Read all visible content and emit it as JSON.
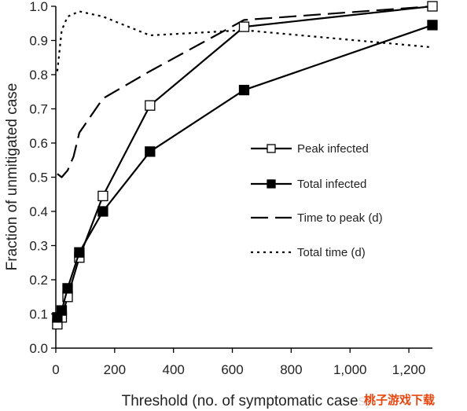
{
  "chart_data": {
    "type": "line",
    "title": "",
    "xlabel": "Threshold (no. of symptomatic cases)",
    "ylabel": "Fraction of unmitigated case",
    "xlim": [
      0,
      1280
    ],
    "ylim": [
      0,
      1.0
    ],
    "x_ticks": [
      0,
      200,
      400,
      600,
      800,
      1000,
      1200
    ],
    "x_tick_labels": [
      "0",
      "200",
      "400",
      "600",
      "800",
      "1,000",
      "1,200"
    ],
    "y_ticks": [
      0,
      0.1,
      0.2,
      0.3,
      0.4,
      0.5,
      0.6,
      0.7,
      0.8,
      0.9,
      1.0
    ],
    "y_tick_labels": [
      "0.0",
      "0.1",
      "0.2",
      "0.3",
      "0.4",
      "0.5",
      "0.6",
      "0.7",
      "0.8",
      "0.9",
      "1.0"
    ],
    "grid": false,
    "legend_position": "right-center",
    "series": [
      {
        "name": "Peak infected",
        "style": "solid-open-square",
        "color": "#000000",
        "x": [
          5,
          20,
          40,
          80,
          160,
          320,
          640,
          1280
        ],
        "y": [
          0.07,
          0.09,
          0.15,
          0.265,
          0.445,
          0.71,
          0.94,
          1.0
        ]
      },
      {
        "name": "Total infected",
        "style": "solid-filled-square",
        "color": "#000000",
        "x": [
          5,
          20,
          40,
          80,
          160,
          320,
          640,
          1280
        ],
        "y": [
          0.09,
          0.11,
          0.175,
          0.28,
          0.4,
          0.575,
          0.755,
          0.945
        ]
      },
      {
        "name": "Time to peak (d)",
        "style": "dashed",
        "color": "#000000",
        "x": [
          5,
          20,
          40,
          60,
          80,
          160,
          320,
          640,
          1280
        ],
        "y": [
          0.51,
          0.5,
          0.52,
          0.56,
          0.63,
          0.73,
          0.81,
          0.96,
          1.0
        ]
      },
      {
        "name": "Total time (d)",
        "style": "dotted",
        "color": "#000000",
        "x": [
          5,
          20,
          40,
          80,
          160,
          320,
          640,
          1280
        ],
        "y": [
          0.81,
          0.93,
          0.97,
          0.985,
          0.97,
          0.915,
          0.93,
          0.88
        ]
      }
    ]
  },
  "watermark": {
    "text": "桃子游戏下载",
    "color": "#e8470f"
  }
}
